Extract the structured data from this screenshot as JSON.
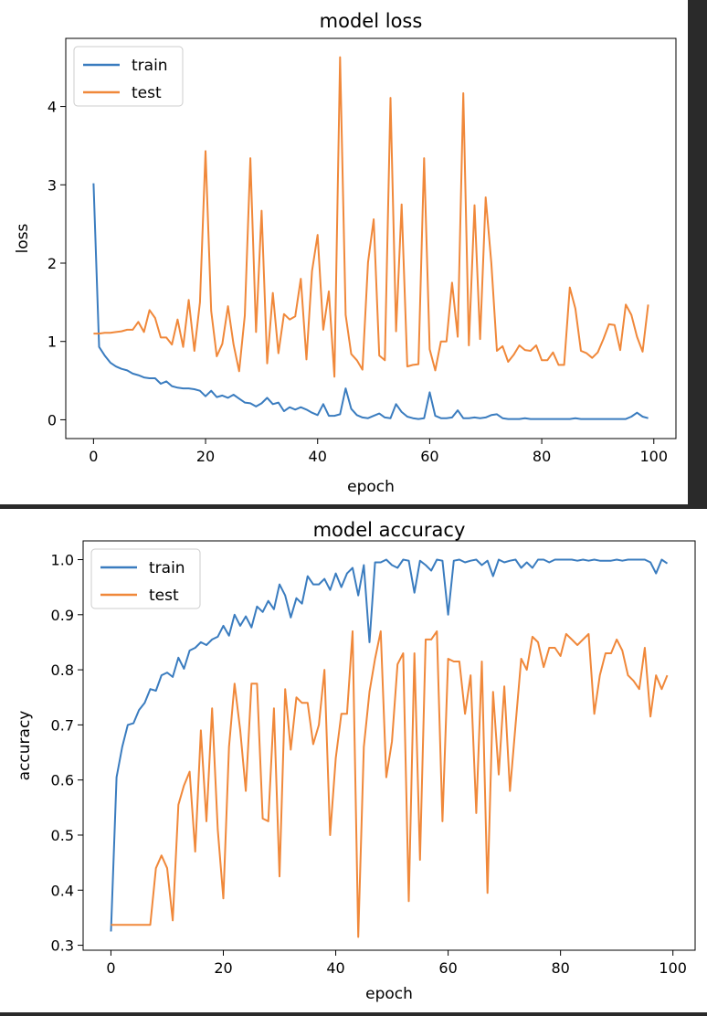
{
  "chart_data": [
    {
      "type": "line",
      "title": "model loss",
      "xlabel": "epoch",
      "ylabel": "loss",
      "xlim": [
        -4.95,
        103.95
      ],
      "ylim": [
        -0.24,
        4.87
      ],
      "xticks": [
        0,
        20,
        40,
        60,
        80,
        100
      ],
      "yticks": [
        0,
        1,
        2,
        3,
        4
      ],
      "legend_position": "upper-left",
      "x": [
        0,
        1,
        2,
        3,
        4,
        5,
        6,
        7,
        8,
        9,
        10,
        11,
        12,
        13,
        14,
        15,
        16,
        17,
        18,
        19,
        20,
        21,
        22,
        23,
        24,
        25,
        26,
        27,
        28,
        29,
        30,
        31,
        32,
        33,
        34,
        35,
        36,
        37,
        38,
        39,
        40,
        41,
        42,
        43,
        44,
        45,
        46,
        47,
        48,
        49,
        50,
        51,
        52,
        53,
        54,
        55,
        56,
        57,
        58,
        59,
        60,
        61,
        62,
        63,
        64,
        65,
        66,
        67,
        68,
        69,
        70,
        71,
        72,
        73,
        74,
        75,
        76,
        77,
        78,
        79,
        80,
        81,
        82,
        83,
        84,
        85,
        86,
        87,
        88,
        89,
        90,
        91,
        92,
        93,
        94,
        95,
        96,
        97,
        98,
        99
      ],
      "series": [
        {
          "name": "train",
          "color": "#3a7cbf",
          "values": [
            3.02,
            0.93,
            0.82,
            0.73,
            0.68,
            0.65,
            0.63,
            0.59,
            0.57,
            0.54,
            0.53,
            0.53,
            0.46,
            0.49,
            0.43,
            0.41,
            0.4,
            0.4,
            0.39,
            0.37,
            0.3,
            0.37,
            0.29,
            0.31,
            0.28,
            0.32,
            0.27,
            0.22,
            0.21,
            0.17,
            0.21,
            0.28,
            0.2,
            0.22,
            0.11,
            0.16,
            0.13,
            0.16,
            0.13,
            0.09,
            0.06,
            0.2,
            0.05,
            0.05,
            0.07,
            0.4,
            0.14,
            0.06,
            0.03,
            0.02,
            0.05,
            0.08,
            0.03,
            0.02,
            0.2,
            0.1,
            0.04,
            0.02,
            0.01,
            0.02,
            0.35,
            0.05,
            0.02,
            0.02,
            0.03,
            0.12,
            0.02,
            0.02,
            0.03,
            0.02,
            0.03,
            0.06,
            0.07,
            0.02,
            0.01,
            0.01,
            0.01,
            0.02,
            0.01,
            0.01,
            0.01,
            0.01,
            0.01,
            0.01,
            0.01,
            0.01,
            0.02,
            0.01,
            0.01,
            0.01,
            0.01,
            0.01,
            0.01,
            0.01,
            0.01,
            0.01,
            0.04,
            0.09,
            0.04,
            0.02
          ]
        },
        {
          "name": "test",
          "color": "#f0883a",
          "values": [
            1.1,
            1.1,
            1.11,
            1.11,
            1.12,
            1.13,
            1.15,
            1.15,
            1.25,
            1.12,
            1.4,
            1.3,
            1.05,
            1.05,
            0.96,
            1.28,
            0.93,
            1.53,
            0.88,
            1.5,
            3.43,
            1.39,
            0.81,
            0.97,
            1.45,
            0.96,
            0.62,
            1.33,
            3.34,
            1.12,
            2.67,
            0.72,
            1.62,
            0.85,
            1.35,
            1.28,
            1.32,
            1.8,
            0.77,
            1.9,
            2.36,
            1.15,
            1.64,
            0.55,
            4.63,
            1.34,
            0.84,
            0.76,
            0.64,
            2.01,
            2.56,
            0.82,
            0.76,
            4.11,
            1.13,
            2.75,
            0.68,
            0.7,
            0.71,
            3.34,
            0.9,
            0.63,
            1.0,
            1.0,
            1.75,
            1.06,
            4.17,
            0.95,
            2.74,
            1.03,
            2.84,
            2.0,
            0.88,
            0.94,
            0.74,
            0.83,
            0.95,
            0.89,
            0.88,
            0.95,
            0.76,
            0.76,
            0.86,
            0.7,
            0.7,
            1.69,
            1.42,
            0.88,
            0.85,
            0.79,
            0.86,
            1.03,
            1.22,
            1.21,
            0.89,
            1.47,
            1.34,
            1.06,
            0.87,
            1.47
          ]
        }
      ]
    },
    {
      "type": "line",
      "title": "model accuracy",
      "xlabel": "epoch",
      "ylabel": "accuracy",
      "xlim": [
        -4.95,
        103.95
      ],
      "ylim": [
        0.291,
        1.034
      ],
      "xticks": [
        0,
        20,
        40,
        60,
        80,
        100
      ],
      "yticks": [
        0.3,
        0.4,
        0.5,
        0.6,
        0.7,
        0.8,
        0.9,
        1.0
      ],
      "legend_position": "upper-left",
      "x": [
        0,
        1,
        2,
        3,
        4,
        5,
        6,
        7,
        8,
        9,
        10,
        11,
        12,
        13,
        14,
        15,
        16,
        17,
        18,
        19,
        20,
        21,
        22,
        23,
        24,
        25,
        26,
        27,
        28,
        29,
        30,
        31,
        32,
        33,
        34,
        35,
        36,
        37,
        38,
        39,
        40,
        41,
        42,
        43,
        44,
        45,
        46,
        47,
        48,
        49,
        50,
        51,
        52,
        53,
        54,
        55,
        56,
        57,
        58,
        59,
        60,
        61,
        62,
        63,
        64,
        65,
        66,
        67,
        68,
        69,
        70,
        71,
        72,
        73,
        74,
        75,
        76,
        77,
        78,
        79,
        80,
        81,
        82,
        83,
        84,
        85,
        86,
        87,
        88,
        89,
        90,
        91,
        92,
        93,
        94,
        95,
        96,
        97,
        98,
        99
      ],
      "series": [
        {
          "name": "train",
          "color": "#3a7cbf",
          "values": [
            0.325,
            0.605,
            0.66,
            0.7,
            0.703,
            0.727,
            0.74,
            0.765,
            0.762,
            0.79,
            0.795,
            0.787,
            0.822,
            0.802,
            0.835,
            0.84,
            0.85,
            0.845,
            0.855,
            0.86,
            0.88,
            0.862,
            0.9,
            0.88,
            0.897,
            0.877,
            0.915,
            0.905,
            0.925,
            0.91,
            0.955,
            0.935,
            0.895,
            0.93,
            0.92,
            0.97,
            0.955,
            0.955,
            0.965,
            0.945,
            0.975,
            0.95,
            0.975,
            0.985,
            0.935,
            0.99,
            0.85,
            0.995,
            0.995,
            1.0,
            0.99,
            0.985,
            1.0,
            0.998,
            0.94,
            0.998,
            0.99,
            0.98,
            1.0,
            0.998,
            0.9,
            0.998,
            1.0,
            0.995,
            0.998,
            1.0,
            0.99,
            0.998,
            0.97,
            1.0,
            0.995,
            0.998,
            1.0,
            0.985,
            0.995,
            0.985,
            1.0,
            1.0,
            0.995,
            1.0,
            1.0,
            1.0,
            1.0,
            0.998,
            1.0,
            0.998,
            1.0,
            0.998,
            0.998,
            0.998,
            1.0,
            0.998,
            1.0,
            1.0,
            1.0,
            1.0,
            0.995,
            0.975,
            1.0,
            0.993
          ]
        },
        {
          "name": "test",
          "color": "#f0883a",
          "values": [
            0.337,
            0.337,
            0.337,
            0.337,
            0.337,
            0.337,
            0.337,
            0.337,
            0.44,
            0.463,
            0.44,
            0.345,
            0.555,
            0.59,
            0.615,
            0.47,
            0.69,
            0.525,
            0.73,
            0.51,
            0.385,
            0.66,
            0.775,
            0.69,
            0.58,
            0.775,
            0.775,
            0.53,
            0.525,
            0.73,
            0.425,
            0.765,
            0.655,
            0.75,
            0.74,
            0.74,
            0.665,
            0.7,
            0.8,
            0.5,
            0.64,
            0.72,
            0.72,
            0.87,
            0.315,
            0.66,
            0.76,
            0.82,
            0.87,
            0.605,
            0.67,
            0.81,
            0.83,
            0.38,
            0.83,
            0.455,
            0.855,
            0.855,
            0.87,
            0.525,
            0.82,
            0.815,
            0.815,
            0.72,
            0.79,
            0.54,
            0.815,
            0.395,
            0.76,
            0.61,
            0.77,
            0.58,
            0.7,
            0.82,
            0.8,
            0.86,
            0.85,
            0.805,
            0.84,
            0.84,
            0.825,
            0.865,
            0.855,
            0.845,
            0.855,
            0.865,
            0.72,
            0.79,
            0.83,
            0.83,
            0.855,
            0.835,
            0.79,
            0.78,
            0.765,
            0.84,
            0.715,
            0.79,
            0.765,
            0.79
          ]
        }
      ]
    }
  ]
}
